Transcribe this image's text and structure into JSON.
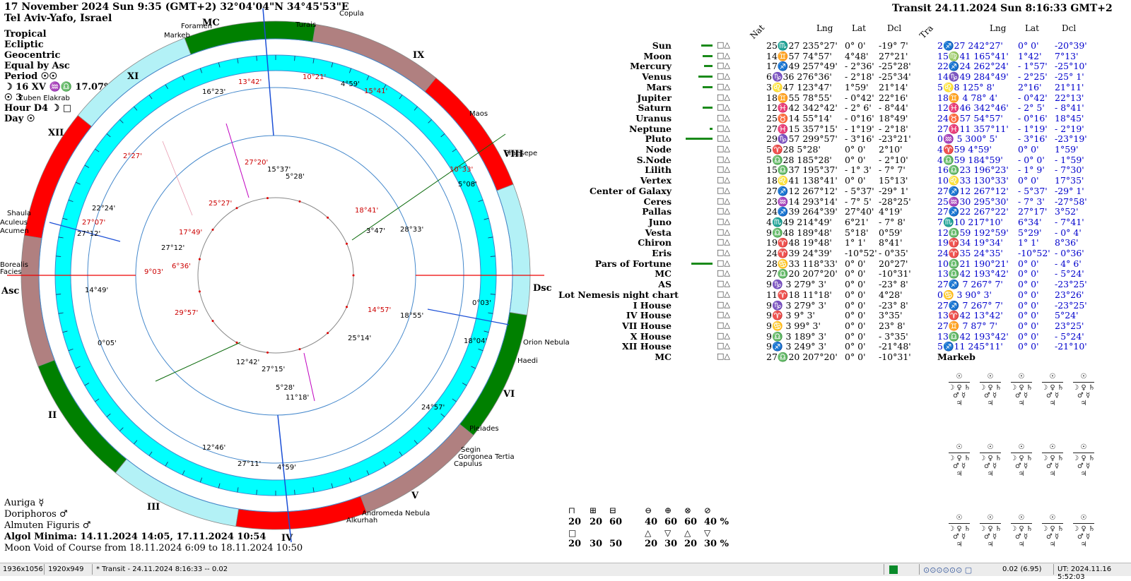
{
  "header": {
    "date_line": "17 November 2024  Sun   9:35 (GMT+2) 32°04'04\"N  34°45'53\"E",
    "place": "Tel Aviv-Yafo, Israel",
    "transit_title": "Transit 24.11.2024  Sun   8:16:33 GMT+2"
  },
  "left_info": {
    "zodiac": "Tropical",
    "coord": "Ecliptic",
    "center": "Geocentric",
    "houses": "Equal by Asc",
    "period": "Period ☉☉",
    "moon_line": "☽ 16 XV ♒♎ 17.07%",
    "sun_line": "☉ 3",
    "hour": "Hour D4 ☽ □",
    "day": "Day ☉"
  },
  "bottom_left": {
    "line1": "Auriga ☿",
    "line2": "Doriphoros ♂",
    "line3": "Almuten Figuris ♂",
    "algol": "Algol Minima: 14.11.2024 14:05,  17.11.2024 10:54",
    "void": "Moon Void of Course from 18.11.2024   6:09 to 18.11.2024 10:50"
  },
  "wheel": {
    "house_labels": [
      "XI",
      "XII",
      "II",
      "III",
      "IV",
      "V",
      "VI",
      "VIII",
      "IX",
      "MC",
      "Dsc",
      "Asc"
    ],
    "stars": [
      "Copula",
      "Foramen",
      "Turais",
      "Markeb",
      "Zuben Elakrab",
      "Maos",
      "Praesepe",
      "Orion Nebula",
      "Haedi",
      "Pleiades",
      "Segin",
      "Gorgonea Tertia",
      "Capulus",
      "Andromeda Nebula",
      "Alkurhah",
      "Shaula",
      "Aculeus",
      "Acumen",
      "Facies",
      "Borealis"
    ],
    "inner_labels": [
      "2°27'",
      "22°24'",
      "27°07'",
      "0°05'",
      "10°21'",
      "15°41'",
      "13°42'",
      "16°23'",
      "4°59'",
      "27°12'",
      "14°49'"
    ],
    "natal_labels": [
      "15°37'",
      "5°28'",
      "27°20'",
      "25°27'",
      "10°33'",
      "5°08'",
      "18°41'",
      "3°47'",
      "28°33'",
      "17°49'",
      "27°12'",
      "6°36'",
      "9°03'",
      "29°57'",
      "14°57'",
      "18°55'",
      "0°03'",
      "18°04'",
      "25°14'",
      "24°57'",
      "12°42'",
      "27°15'",
      "5°28'",
      "11°18'",
      "12°46'",
      "27°11'",
      "4°59'"
    ]
  },
  "table": {
    "columns_natal": [
      "Nat",
      "Lng",
      "Lat",
      "Dcl"
    ],
    "columns_transit": [
      "Tra",
      "Lng",
      "Lat",
      "Dcl"
    ],
    "rows": [
      {
        "name": "Sun",
        "nat": "25♏27 235°27'",
        "nlat": "0° 0'",
        "ndcl": "-19° 7'",
        "tra": "2♐27 242°27'",
        "tlat": "0° 0'",
        "tdcl": "-20°39'"
      },
      {
        "name": "Moon",
        "nat": "14♊57  74°57'",
        "nlat": "4°48'",
        "ndcl": "27°21'",
        "tra": "15♍41 165°41'",
        "tlat": "1°42'",
        "tdcl": "7°13'"
      },
      {
        "name": "Mercury",
        "nat": "17♐49 257°49'",
        "nlat": "- 2°36'",
        "ndcl": "-25°28'",
        "tra": "22♐24 262°24'",
        "tlat": "- 1°57'",
        "tdcl": "-25°10'"
      },
      {
        "name": "Venus",
        "nat": "6♑36 276°36'",
        "nlat": "- 2°18'",
        "ndcl": "-25°34'",
        "tra": "14♑49 284°49'",
        "tlat": "- 2°25'",
        "tdcl": "-25° 1'"
      },
      {
        "name": "Mars",
        "nat": "3♌47 123°47'",
        "nlat": "1°59'",
        "ndcl": "21°14'",
        "tra": "5♌8 125° 8'",
        "tlat": "2°16'",
        "tdcl": "21°11'"
      },
      {
        "name": "Jupiter",
        "nat": "18♊55  78°55'",
        "nlat": "- 0°42'",
        "ndcl": "22°16'",
        "tra": "18♊ 4  78° 4'",
        "tlat": "- 0°42'",
        "tdcl": "22°13'"
      },
      {
        "name": "Saturn",
        "nat": "12♓42 342°42'",
        "nlat": "- 2° 6'",
        "ndcl": "- 8°44'",
        "tra": "12♓46 342°46'",
        "tlat": "- 2° 5'",
        "tdcl": "- 8°41'"
      },
      {
        "name": "Uranus",
        "nat": "25♉14  55°14'",
        "nlat": "- 0°16'",
        "ndcl": "18°49'",
        "tra": "24♉57  54°57'",
        "tlat": "- 0°16'",
        "tdcl": "18°45'"
      },
      {
        "name": "Neptune",
        "nat": "27♓15 357°15'",
        "nlat": "- 1°19'",
        "ndcl": "- 2°18'",
        "tra": "27♓11 357°11'",
        "tlat": "- 1°19'",
        "tdcl": "- 2°19'"
      },
      {
        "name": "Pluto",
        "nat": "29♑57 299°57'",
        "nlat": "- 3°16'",
        "ndcl": "-23°21'",
        "tra": "0♒ 5 300° 5'",
        "tlat": "- 3°16'",
        "tdcl": "-23°19'"
      },
      {
        "name": "Node",
        "nat": "5♈28   5°28'",
        "nlat": "0° 0'",
        "ndcl": "2°10'",
        "tra": "4♈59   4°59'",
        "tlat": "0° 0'",
        "tdcl": "1°59'"
      },
      {
        "name": "S.Node",
        "nat": "5♎28 185°28'",
        "nlat": "0° 0'",
        "ndcl": "- 2°10'",
        "tra": "4♎59 184°59'",
        "tlat": "- 0° 0'",
        "tdcl": "- 1°59'"
      },
      {
        "name": "Lilith",
        "nat": "15♎37 195°37'",
        "nlat": "- 1° 3'",
        "ndcl": "- 7° 7'",
        "tra": "16♎23 196°23'",
        "tlat": "- 1° 9'",
        "tdcl": "- 7°30'"
      },
      {
        "name": "Vertex",
        "nat": "18♌41 138°41'",
        "nlat": "0° 0'",
        "ndcl": "15°13'",
        "tra": "10♌33 130°33'",
        "tlat": "0° 0'",
        "tdcl": "17°35'"
      },
      {
        "name": "Center of Galaxy",
        "nat": "27♐12 267°12'",
        "nlat": "- 5°37'",
        "ndcl": "-29° 1'",
        "tra": "27♐12 267°12'",
        "tlat": "- 5°37'",
        "tdcl": "-29° 1'"
      },
      {
        "name": "Ceres",
        "nat": "23♒14 293°14'",
        "nlat": "- 7° 5'",
        "ndcl": "-28°25'",
        "tra": "25♒30 295°30'",
        "tlat": "- 7° 3'",
        "tdcl": "-27°58'"
      },
      {
        "name": "Pallas",
        "nat": "24♐39 264°39'",
        "nlat": "27°40'",
        "ndcl": "4°19'",
        "tra": "27♐22 267°22'",
        "tlat": "27°17'",
        "tdcl": "3°52'"
      },
      {
        "name": "Juno",
        "nat": "4♏49 214°49'",
        "nlat": "6°21'",
        "ndcl": "- 7° 8'",
        "tra": "7♏10 217°10'",
        "tlat": "6°34'",
        "tdcl": "- 7°41'"
      },
      {
        "name": "Vesta",
        "nat": "9♎48 189°48'",
        "nlat": "5°18'",
        "ndcl": "0°59'",
        "tra": "12♎59 192°59'",
        "tlat": "5°29'",
        "tdcl": "- 0° 4'"
      },
      {
        "name": "Chiron",
        "nat": "19♈48  19°48'",
        "nlat": "1° 1'",
        "ndcl": "8°41'",
        "tra": "19♈34  19°34'",
        "tlat": "1° 1'",
        "tdcl": "8°36'"
      },
      {
        "name": "Eris",
        "nat": "24♈39  24°39'",
        "nlat": "-10°52'",
        "ndcl": "- 0°35'",
        "tra": "24♈35  24°35'",
        "tlat": "-10°52'",
        "tdcl": "- 0°36'"
      },
      {
        "name": "Pars of Fortune",
        "nat": "28♋33 118°33'",
        "nlat": "0° 0'",
        "ndcl": "20°27'",
        "tra": "10♎21 190°21'",
        "tlat": "0° 0'",
        "tdcl": "- 4° 6'"
      },
      {
        "name": "MC",
        "nat": "27♎20 207°20'",
        "nlat": "0° 0'",
        "ndcl": "-10°31'",
        "tra": "13♎42 193°42'",
        "tlat": "0° 0'",
        "tdcl": "- 5°24'"
      },
      {
        "name": "AS",
        "nat": "9♑ 3 279° 3'",
        "nlat": "0° 0'",
        "ndcl": "-23° 8'",
        "tra": "27♐ 7 267° 7'",
        "tlat": "0° 0'",
        "tdcl": "-23°25'"
      },
      {
        "name": "Lot Nemesis night chart",
        "nat": "11♈18  11°18'",
        "nlat": "0° 0'",
        "ndcl": "4°28'",
        "tra": "0♋ 3  90° 3'",
        "tlat": "0° 0'",
        "tdcl": "23°26'"
      },
      {
        "name": "I House",
        "nat": "9♑ 3 279° 3'",
        "nlat": "0° 0'",
        "ndcl": "-23° 8'",
        "tra": "27♐ 7 267° 7'",
        "tlat": "0° 0'",
        "tdcl": "-23°25'"
      },
      {
        "name": "IV House",
        "nat": "9♈ 3   9° 3'",
        "nlat": "0° 0'",
        "ndcl": "3°35'",
        "tra": "13♈42  13°42'",
        "tlat": "0° 0'",
        "tdcl": "5°24'"
      },
      {
        "name": "VII House",
        "nat": "9♋ 3  99° 3'",
        "nlat": "0° 0'",
        "ndcl": "23° 8'",
        "tra": "27♊ 7  87° 7'",
        "tlat": "0° 0'",
        "tdcl": "23°25'"
      },
      {
        "name": "X House",
        "nat": "9♎ 3 189° 3'",
        "nlat": "0° 0'",
        "ndcl": "- 3°35'",
        "tra": "13♎42 193°42'",
        "tlat": "0° 0'",
        "tdcl": "- 5°24'"
      },
      {
        "name": "XII House",
        "nat": "9♐ 3 249° 3'",
        "nlat": "0° 0'",
        "ndcl": "-21°48'",
        "tra": "5♐11 245°11'",
        "tlat": "0° 0'",
        "tdcl": "-21°10'"
      },
      {
        "name": "MC",
        "nat": "27♎20 207°20'",
        "nlat": "0° 0'",
        "ndcl": "-10°31'",
        "tra": "Markeb",
        "tlat": "",
        "tdcl": ""
      }
    ]
  },
  "stats": {
    "row1_values": [
      "20",
      "20",
      "60",
      "40",
      "60",
      "60",
      "40 %"
    ],
    "row2_values": [
      "20",
      "30",
      "50",
      "20",
      "30",
      "20",
      "30 %"
    ]
  },
  "status": {
    "s1": "1936x1056",
    "s2": "1920x949",
    "s3": "* Transit - 24.11.2024  8:16:33 -- 0.02",
    "s4": "0.02 (6.95)",
    "s5": "UT: 2024.11.16  5:52:03"
  },
  "colors": {
    "cyan": "#00ffff",
    "light_cyan": "#b3f1f6",
    "red": "#ff0000",
    "green": "#008000",
    "mauve": "#b08080",
    "natal_red": "#cc0000",
    "transit_blue": "#0000cc"
  }
}
